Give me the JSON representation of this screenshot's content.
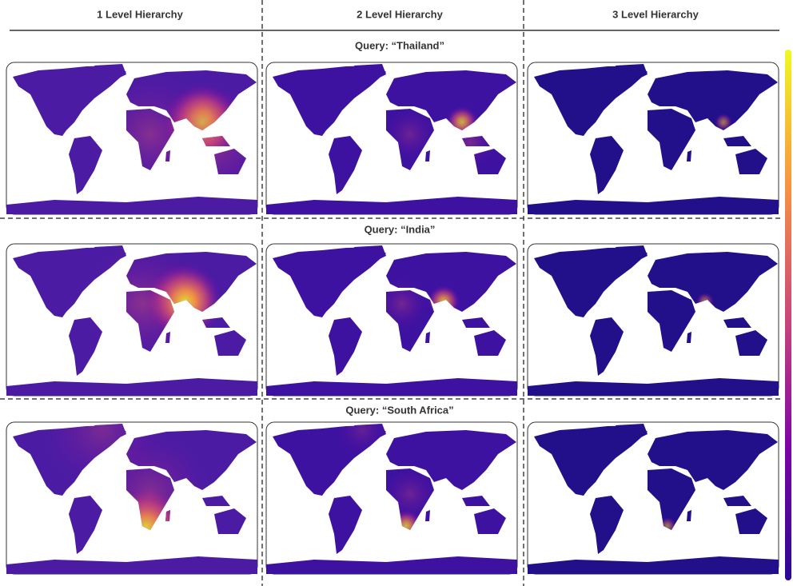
{
  "columns": [
    "1 Level Hierarchy",
    "2 Level Hierarchy",
    "3 Level Hierarchy"
  ],
  "queries": [
    "Query: “Thailand”",
    "Query: “India”",
    "Query: “South Africa”"
  ]
}
